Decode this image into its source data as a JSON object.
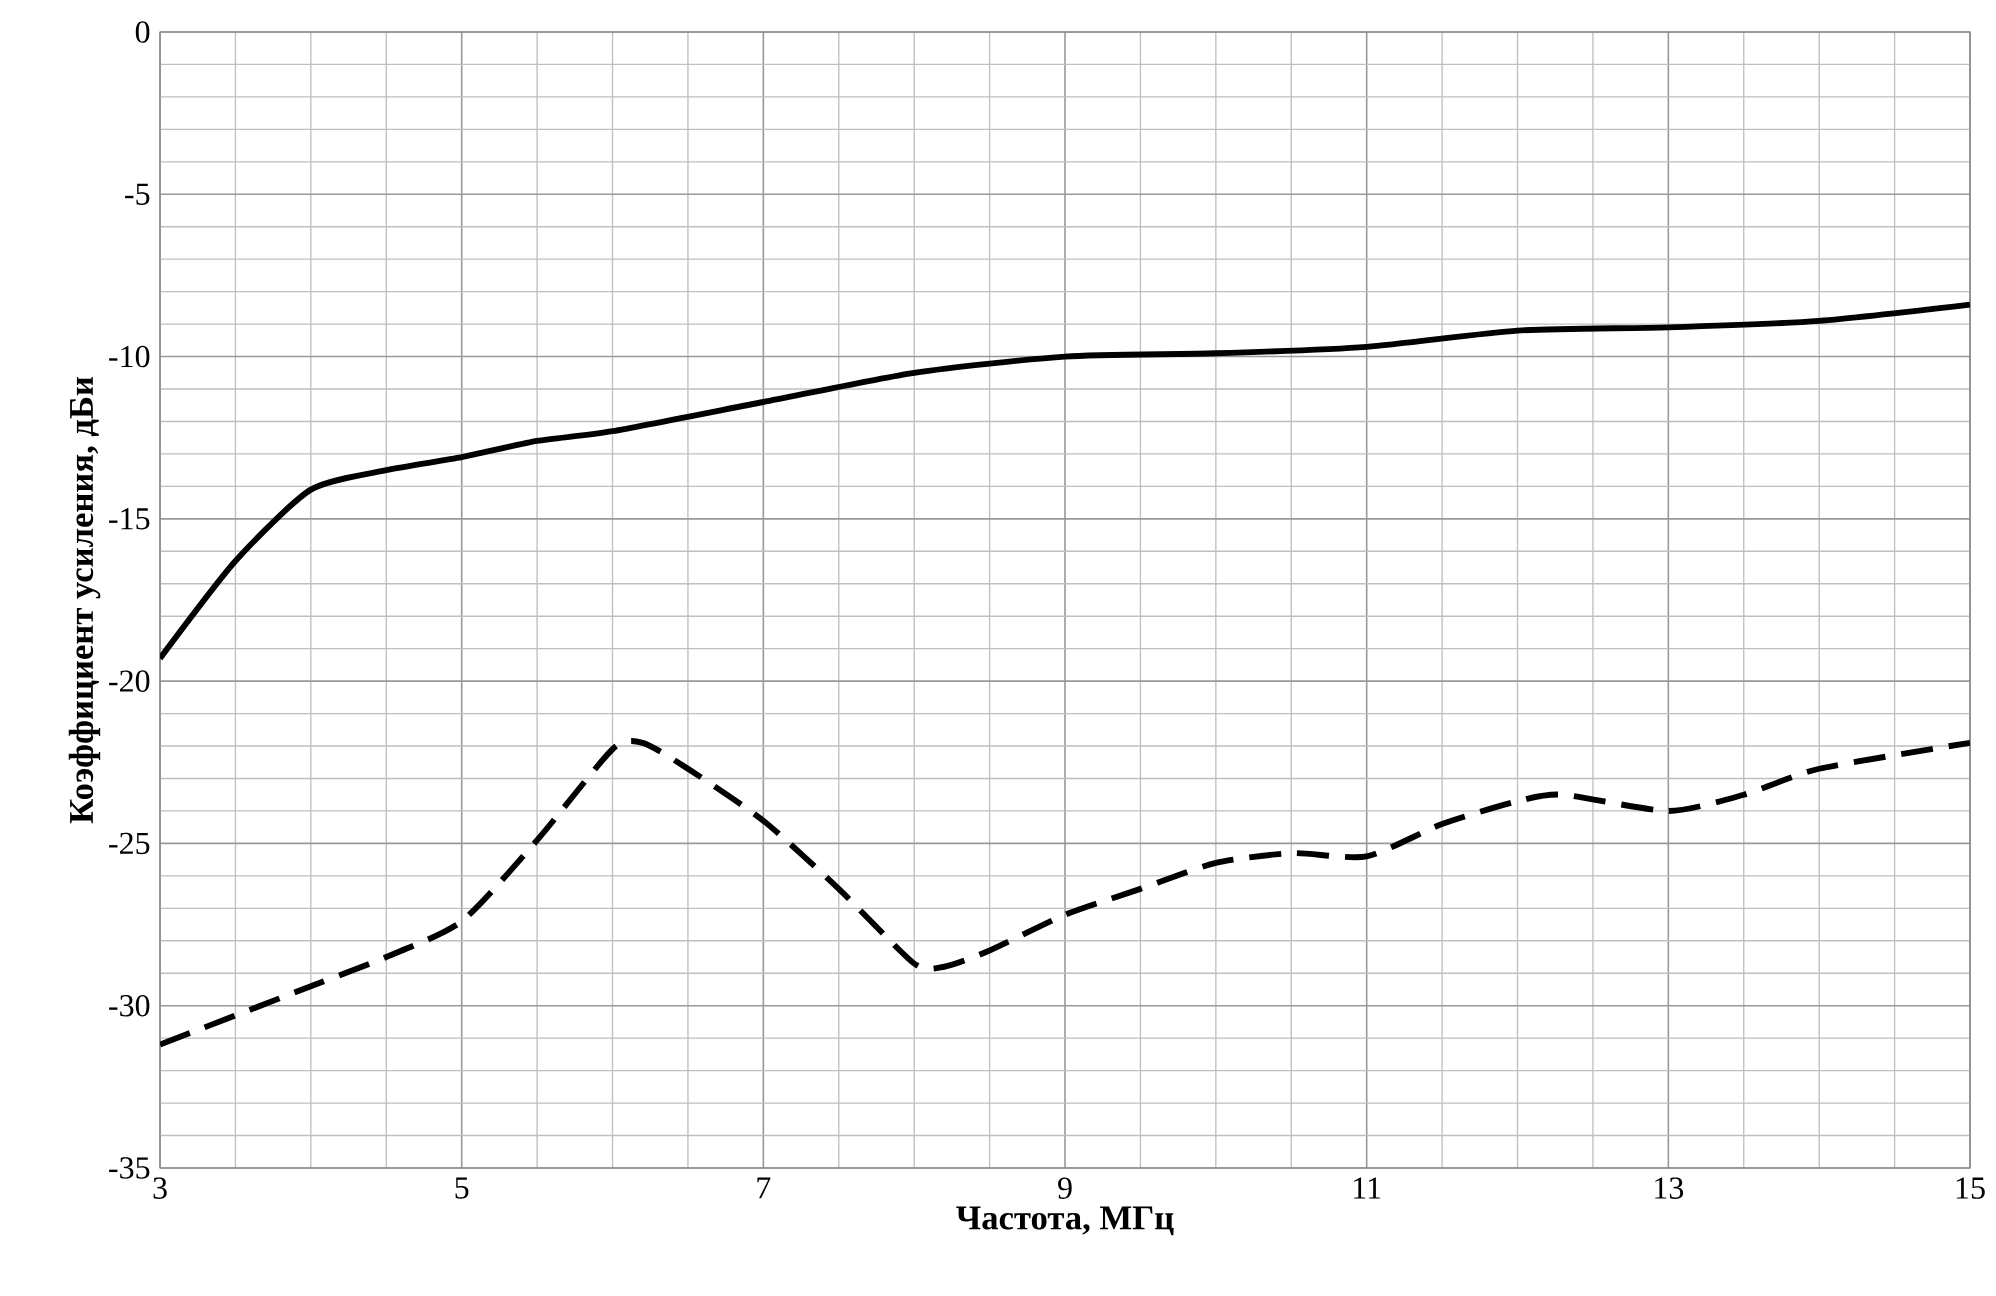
{
  "chart_data": {
    "type": "line",
    "xlabel": "Частота, МГц",
    "ylabel": "Коэффициент усиления, дБи",
    "xlim": [
      3,
      15
    ],
    "ylim": [
      -35,
      0
    ],
    "xticks": [
      3,
      5,
      7,
      9,
      11,
      13,
      15
    ],
    "yticks": [
      -35,
      -30,
      -25,
      -20,
      -15,
      -10,
      -5,
      0
    ],
    "grid": true,
    "marker": "none",
    "series": [
      {
        "color": "#000000",
        "line_style": "solid",
        "x": [
          3,
          3.5,
          4,
          4.5,
          5,
          5.5,
          6,
          7,
          8,
          9,
          10,
          11,
          12,
          13,
          14,
          15
        ],
        "values": [
          -19.3,
          -16.3,
          -14.1,
          -13.5,
          -13.1,
          -12.6,
          -12.3,
          -11.4,
          -10.5,
          -10.0,
          -9.9,
          -9.7,
          -9.2,
          -9.1,
          -8.9,
          -8.4
        ]
      },
      {
        "color": "#000000",
        "line_style": "dashed",
        "x": [
          3,
          4,
          4.5,
          5,
          5.5,
          6,
          6.2,
          6.5,
          7,
          7.5,
          8,
          8.2,
          8.5,
          9,
          9.5,
          10,
          10.5,
          11,
          11.5,
          12,
          12.3,
          13,
          13.5,
          14,
          15
        ],
        "values": [
          -31.2,
          -29.4,
          -28.5,
          -27.4,
          -24.9,
          -22.1,
          -21.9,
          -22.7,
          -24.3,
          -26.4,
          -28.7,
          -28.8,
          -28.3,
          -27.2,
          -26.4,
          -25.6,
          -25.3,
          -25.4,
          -24.4,
          -23.7,
          -23.5,
          -24.0,
          -23.5,
          -22.7,
          -21.9
        ]
      }
    ]
  }
}
